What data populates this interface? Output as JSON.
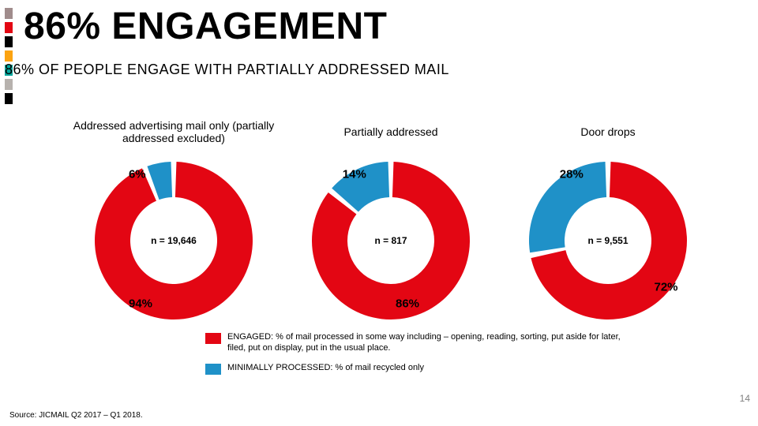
{
  "accent_bars": [
    "#a08c8c",
    "#e30613",
    "#000000",
    "#fca311",
    "#00a79d",
    "#b7b2ae",
    "#000000"
  ],
  "accent_bar_height": 14,
  "title": {
    "text": "86% ENGAGEMENT",
    "fontsize": 48,
    "weight": 900,
    "color": "#000000"
  },
  "subtitle": {
    "text": "86% OF PEOPLE ENGAGE WITH PARTIALLY ADDRESSED MAIL",
    "fontsize": 18,
    "color": "#000000"
  },
  "colors": {
    "engaged": "#e30613",
    "minimal": "#1f91c8",
    "gap": "#ffffff"
  },
  "donut": {
    "outer_r": 100,
    "inner_r": 55,
    "gap_deg": 4,
    "start_deg": -90
  },
  "label_style": {
    "center_fontsize": 12,
    "edge_fontsize": 15,
    "chart_title_fontsize": 14
  },
  "charts": [
    {
      "title": "Addressed advertising mail only (partially addressed excluded)",
      "n_label": "n = 19,646",
      "slices": [
        {
          "key": "engaged",
          "value": 94,
          "label": "94%",
          "label_pos": "bl"
        },
        {
          "key": "minimal",
          "value": 6,
          "label": "6%",
          "label_pos": "tl"
        }
      ]
    },
    {
      "title": "Partially addressed",
      "n_label": "n = 817",
      "slices": [
        {
          "key": "engaged",
          "value": 86,
          "label": "86%",
          "label_pos": "br"
        },
        {
          "key": "minimal",
          "value": 14,
          "label": "14%",
          "label_pos": "tl"
        }
      ]
    },
    {
      "title": "Door drops",
      "n_label": "n = 9,551",
      "slices": [
        {
          "key": "engaged",
          "value": 72,
          "label": "72%",
          "label_pos": "brr"
        },
        {
          "key": "minimal",
          "value": 28,
          "label": "28%",
          "label_pos": "tl"
        }
      ]
    }
  ],
  "legend": [
    {
      "color_key": "engaged",
      "text": "ENGAGED: % of mail processed in some way including – opening, reading, sorting, put aside for later, filed, put on display, put in the usual place."
    },
    {
      "color_key": "minimal",
      "text": "MINIMALLY PROCESSED: % of mail recycled only"
    }
  ],
  "legend_fontsize": 11,
  "source": {
    "text": "Source: JICMAIL Q2 2017 – Q1 2018.",
    "fontsize": 10
  },
  "page_number": {
    "text": "14",
    "fontsize": 12
  }
}
